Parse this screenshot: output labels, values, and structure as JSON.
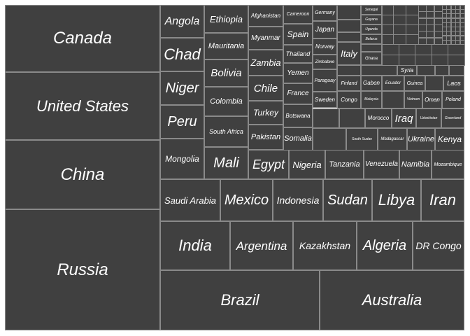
{
  "chart_data": {
    "type": "treemap",
    "title": "",
    "colors": {
      "fill": "#404040",
      "border": "#8a8a8a",
      "text": "#ffffff",
      "background": "#ffffff"
    },
    "items": [
      {
        "name": "Russia",
        "value": 17098
      },
      {
        "name": "Canada",
        "value": 9985
      },
      {
        "name": "United States",
        "value": 9834
      },
      {
        "name": "China",
        "value": 9597
      },
      {
        "name": "Brazil",
        "value": 8516
      },
      {
        "name": "Australia",
        "value": 7692
      },
      {
        "name": "India",
        "value": 3287
      },
      {
        "name": "Argentina",
        "value": 2780
      },
      {
        "name": "Kazakhstan",
        "value": 2725
      },
      {
        "name": "Algeria",
        "value": 2382
      },
      {
        "name": "DR Congo",
        "value": 2345
      },
      {
        "name": "Saudi Arabia",
        "value": 2150
      },
      {
        "name": "Mexico",
        "value": 1964
      },
      {
        "name": "Indonesia",
        "value": 1905
      },
      {
        "name": "Sudan",
        "value": 1886
      },
      {
        "name": "Libya",
        "value": 1760
      },
      {
        "name": "Iran",
        "value": 1648
      },
      {
        "name": "Mongolia",
        "value": 1564
      },
      {
        "name": "Peru",
        "value": 1285
      },
      {
        "name": "Chad",
        "value": 1284
      },
      {
        "name": "Niger",
        "value": 1267
      },
      {
        "name": "Angola",
        "value": 1247
      },
      {
        "name": "Mali",
        "value": 1240
      },
      {
        "name": "South Africa",
        "value": 1221
      },
      {
        "name": "Colombia",
        "value": 1142
      },
      {
        "name": "Ethiopia",
        "value": 1104
      },
      {
        "name": "Bolivia",
        "value": 1099
      },
      {
        "name": "Mauritania",
        "value": 1031
      },
      {
        "name": "Egypt",
        "value": 1002
      },
      {
        "name": "Tanzania",
        "value": 945
      },
      {
        "name": "Nigeria",
        "value": 924
      },
      {
        "name": "Venezuela",
        "value": 916
      },
      {
        "name": "Pakistan",
        "value": 882
      },
      {
        "name": "Namibia",
        "value": 825
      },
      {
        "name": "Mozambique",
        "value": 802
      },
      {
        "name": "Turkey",
        "value": 784
      },
      {
        "name": "Chile",
        "value": 756
      },
      {
        "name": "Zambia",
        "value": 753
      },
      {
        "name": "Myanmar",
        "value": 677
      },
      {
        "name": "Afghanistan",
        "value": 653
      },
      {
        "name": "South Sudan",
        "value": 644
      },
      {
        "name": "Somalia",
        "value": 638
      },
      {
        "name": "Madagascar",
        "value": 587
      },
      {
        "name": "Ukraine",
        "value": 604
      },
      {
        "name": "Kenya",
        "value": 580
      },
      {
        "name": "Botswana",
        "value": 582
      },
      {
        "name": "France",
        "value": 552
      },
      {
        "name": "Yemen",
        "value": 528
      },
      {
        "name": "Thailand",
        "value": 513
      },
      {
        "name": "Spain",
        "value": 506
      },
      {
        "name": "Cameroon",
        "value": 475
      },
      {
        "name": "Morocco",
        "value": 447
      },
      {
        "name": "Iraq",
        "value": 438
      },
      {
        "name": "Uzbekistan",
        "value": 447
      },
      {
        "name": "Greenland",
        "value": 410
      },
      {
        "name": "Paraguay",
        "value": 407
      },
      {
        "name": "Zimbabwe",
        "value": 391
      },
      {
        "name": "Japan",
        "value": 378
      },
      {
        "name": "Germany",
        "value": 357
      },
      {
        "name": "Norway",
        "value": 385
      },
      {
        "name": "Sweden",
        "value": 450
      },
      {
        "name": "Congo",
        "value": 342
      },
      {
        "name": "Finland",
        "value": 338
      },
      {
        "name": "Vietnam",
        "value": 331
      },
      {
        "name": "Malaysia",
        "value": 330
      },
      {
        "name": "Oman",
        "value": 310
      },
      {
        "name": "Poland",
        "value": 313
      },
      {
        "name": "Italy",
        "value": 301
      },
      {
        "name": "Ecuador",
        "value": 284
      },
      {
        "name": "Guinea",
        "value": 246
      },
      {
        "name": "Gabon",
        "value": 268
      },
      {
        "name": "Laos",
        "value": 237
      },
      {
        "name": "Ghana",
        "value": 239
      },
      {
        "name": "Uganda",
        "value": 241
      },
      {
        "name": "Guyana",
        "value": 215
      },
      {
        "name": "Belarus",
        "value": 208
      },
      {
        "name": "Senegal",
        "value": 197
      },
      {
        "name": "Syria",
        "value": 185
      }
    ]
  }
}
